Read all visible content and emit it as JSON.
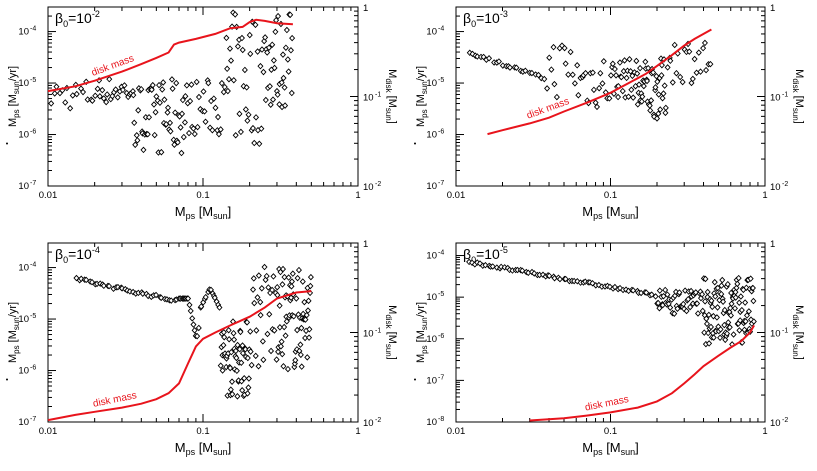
{
  "chart_data": [
    {
      "type": "scatter",
      "title_base": "β",
      "title_sub": "0",
      "title_mid": "=10",
      "title_exp": "-2",
      "xlabel": {
        "base": "M",
        "sub": "ps",
        "rest": " [M",
        "sub2": "sun",
        "end": "]"
      },
      "ylabel_left": {
        "base": "M",
        "sub": "ps",
        "rest": " [M",
        "sub2": "sun",
        "end": "/yr]"
      },
      "ylabel_right": {
        "base": "M",
        "sub": "disk",
        "rest": " [M",
        "sub2": "sun",
        "end": "]"
      },
      "xlim": [
        0.01,
        1
      ],
      "ylim_left": [
        1e-07,
        0.0003
      ],
      "ylim_right": [
        0.01,
        1
      ],
      "x_ticks": [
        {
          "v": 0.01,
          "label": "0.01"
        },
        {
          "v": 0.1,
          "label": "0.1"
        },
        {
          "v": 1,
          "label": "1"
        }
      ],
      "y_left_ticks": [
        {
          "v": 1e-07,
          "exp": "-7"
        },
        {
          "v": 1e-06,
          "exp": "-6"
        },
        {
          "v": 1e-05,
          "exp": "-5"
        },
        {
          "v": 0.0001,
          "exp": "-4"
        }
      ],
      "y_right_ticks": [
        {
          "v": 0.01,
          "base": "10",
          "exp": "-2"
        },
        {
          "v": 0.1,
          "base": "10",
          "exp": "-1"
        },
        {
          "v": 1,
          "base": "1",
          "exp": ""
        }
      ],
      "line_label": "disk mass",
      "line_color": "#e8141c",
      "disk_mass_line": [
        [
          0.01,
          0.115
        ],
        [
          0.015,
          0.13
        ],
        [
          0.02,
          0.15
        ],
        [
          0.03,
          0.19
        ],
        [
          0.04,
          0.23
        ],
        [
          0.05,
          0.27
        ],
        [
          0.06,
          0.31
        ],
        [
          0.065,
          0.38
        ],
        [
          0.07,
          0.4
        ],
        [
          0.09,
          0.44
        ],
        [
          0.12,
          0.5
        ],
        [
          0.15,
          0.58
        ],
        [
          0.18,
          0.6
        ],
        [
          0.2,
          0.68
        ],
        [
          0.22,
          0.72
        ],
        [
          0.25,
          0.7
        ],
        [
          0.3,
          0.66
        ],
        [
          0.38,
          0.64
        ]
      ],
      "accretion_segments": [
        {
          "x0": 0.01,
          "x1": 0.02,
          "ymin": 3e-06,
          "ymax": 1.2e-05,
          "n": 18
        },
        {
          "x0": 0.02,
          "x1": 0.035,
          "ymin": 4e-06,
          "ymax": 1.3e-05,
          "n": 22
        },
        {
          "x0": 0.035,
          "x1": 0.05,
          "ymin": 5e-07,
          "ymax": 1e-05,
          "n": 26
        },
        {
          "x0": 0.05,
          "x1": 0.08,
          "ymin": 4e-07,
          "ymax": 1.2e-05,
          "n": 36
        },
        {
          "x0": 0.08,
          "x1": 0.14,
          "ymin": 1e-06,
          "ymax": 1.2e-05,
          "n": 28
        },
        {
          "x0": 0.14,
          "x1": 0.25,
          "ymin": 6e-07,
          "ymax": 0.00025,
          "n": 40
        },
        {
          "x0": 0.25,
          "x1": 0.38,
          "ymin": 3e-06,
          "ymax": 0.00025,
          "n": 36
        }
      ]
    },
    {
      "type": "scatter",
      "title_base": "β",
      "title_sub": "0",
      "title_mid": "=10",
      "title_exp": "-3",
      "xlabel": {
        "base": "M",
        "sub": "ps",
        "rest": " [M",
        "sub2": "sun",
        "end": "]"
      },
      "ylabel_left": {
        "base": "M",
        "sub": "ps",
        "rest": " [M",
        "sub2": "sun",
        "end": "/yr]"
      },
      "ylabel_right": {
        "base": "M",
        "sub": "disk",
        "rest": " [M",
        "sub2": "sun",
        "end": "]"
      },
      "xlim": [
        0.01,
        1
      ],
      "ylim_left": [
        1e-07,
        0.0003
      ],
      "ylim_right": [
        0.01,
        1
      ],
      "x_ticks": [
        {
          "v": 0.01,
          "label": "0.01"
        },
        {
          "v": 0.1,
          "label": "0.1"
        },
        {
          "v": 1,
          "label": "1"
        }
      ],
      "y_left_ticks": [
        {
          "v": 1e-07,
          "exp": "-7"
        },
        {
          "v": 1e-06,
          "exp": "-6"
        },
        {
          "v": 1e-05,
          "exp": "-5"
        },
        {
          "v": 0.0001,
          "exp": "-4"
        }
      ],
      "y_right_ticks": [
        {
          "v": 0.01,
          "base": "10",
          "exp": "-2"
        },
        {
          "v": 0.1,
          "base": "10",
          "exp": "-1"
        },
        {
          "v": 1,
          "base": "1",
          "exp": ""
        }
      ],
      "line_label": "disk mass",
      "line_color": "#e8141c",
      "disk_mass_line": [
        [
          0.016,
          0.038
        ],
        [
          0.02,
          0.042
        ],
        [
          0.03,
          0.05
        ],
        [
          0.04,
          0.058
        ],
        [
          0.05,
          0.068
        ],
        [
          0.07,
          0.085
        ],
        [
          0.1,
          0.11
        ],
        [
          0.13,
          0.14
        ],
        [
          0.17,
          0.18
        ],
        [
          0.2,
          0.22
        ],
        [
          0.25,
          0.29
        ],
        [
          0.3,
          0.37
        ],
        [
          0.35,
          0.44
        ],
        [
          0.45,
          0.56
        ]
      ],
      "accretion_segments": [
        {
          "x0": 0.012,
          "x1": 0.038,
          "ymin": 1.2e-05,
          "ymax": 4e-05,
          "n": 26,
          "trend": "down"
        },
        {
          "x0": 0.038,
          "x1": 0.06,
          "ymin": 5e-06,
          "ymax": 8e-05,
          "n": 14
        },
        {
          "x0": 0.06,
          "x1": 0.1,
          "ymin": 3e-06,
          "ymax": 4e-05,
          "n": 20
        },
        {
          "x0": 0.1,
          "x1": 0.15,
          "ymin": 5e-06,
          "ymax": 3e-05,
          "n": 28
        },
        {
          "x0": 0.15,
          "x1": 0.23,
          "ymin": 2e-06,
          "ymax": 3e-05,
          "n": 44
        },
        {
          "x0": 0.23,
          "x1": 0.45,
          "ymin": 1e-05,
          "ymax": 8e-05,
          "n": 24
        }
      ]
    },
    {
      "type": "scatter",
      "title_base": "β",
      "title_sub": "0",
      "title_mid": "=10",
      "title_exp": "-4",
      "xlabel": {
        "base": "M",
        "sub": "ps",
        "rest": " [M",
        "sub2": "sun",
        "end": "]"
      },
      "ylabel_left": {
        "base": "M",
        "sub": "ps",
        "rest": " [M",
        "sub2": "sun",
        "end": "/yr]"
      },
      "ylabel_right": {
        "base": "M",
        "sub": "disk",
        "rest": " [M",
        "sub2": "sun",
        "end": "]"
      },
      "xlim": [
        0.01,
        1
      ],
      "ylim_left": [
        1e-07,
        0.0003
      ],
      "ylim_right": [
        0.01,
        1
      ],
      "x_ticks": [
        {
          "v": 0.01,
          "label": "0.01"
        },
        {
          "v": 0.1,
          "label": "0.1"
        },
        {
          "v": 1,
          "label": "1"
        }
      ],
      "y_left_ticks": [
        {
          "v": 1e-07,
          "exp": "-7"
        },
        {
          "v": 1e-06,
          "exp": "-6"
        },
        {
          "v": 1e-05,
          "exp": "-5"
        },
        {
          "v": 0.0001,
          "exp": "-4"
        }
      ],
      "y_right_ticks": [
        {
          "v": 0.01,
          "base": "10",
          "exp": "-2"
        },
        {
          "v": 0.1,
          "base": "10",
          "exp": "-1"
        },
        {
          "v": 1,
          "base": "1",
          "exp": ""
        }
      ],
      "line_label": "disk mass",
      "line_color": "#e8141c",
      "disk_mass_line": [
        [
          0.01,
          0.0105
        ],
        [
          0.015,
          0.012
        ],
        [
          0.02,
          0.013
        ],
        [
          0.03,
          0.0145
        ],
        [
          0.04,
          0.016
        ],
        [
          0.05,
          0.018
        ],
        [
          0.06,
          0.021
        ],
        [
          0.07,
          0.027
        ],
        [
          0.08,
          0.045
        ],
        [
          0.09,
          0.07
        ],
        [
          0.1,
          0.085
        ],
        [
          0.12,
          0.1
        ],
        [
          0.15,
          0.12
        ],
        [
          0.2,
          0.15
        ],
        [
          0.25,
          0.19
        ],
        [
          0.3,
          0.24
        ],
        [
          0.4,
          0.28
        ],
        [
          0.5,
          0.29
        ]
      ],
      "accretion_segments": [
        {
          "x0": 0.015,
          "x1": 0.07,
          "ymin": 2.2e-05,
          "ymax": 6e-05,
          "n": 40,
          "trend": "down"
        },
        {
          "x0": 0.07,
          "x1": 0.095,
          "ymin": 4e-06,
          "ymax": 2.5e-05,
          "n": 16,
          "trend": "dip"
        },
        {
          "x0": 0.095,
          "x1": 0.13,
          "ymin": 1.5e-05,
          "ymax": 4e-05,
          "n": 14,
          "trend": "bump"
        },
        {
          "x0": 0.13,
          "x1": 0.2,
          "ymin": 3e-07,
          "ymax": 1e-05,
          "n": 60
        },
        {
          "x0": 0.2,
          "x1": 0.3,
          "ymin": 1e-06,
          "ymax": 0.00014,
          "n": 30
        },
        {
          "x0": 0.3,
          "x1": 0.5,
          "ymin": 1e-06,
          "ymax": 0.0001,
          "n": 70
        }
      ]
    },
    {
      "type": "scatter",
      "title_base": "β",
      "title_sub": "0",
      "title_mid": "=10",
      "title_exp": "-5",
      "xlabel": {
        "base": "M",
        "sub": "ps",
        "rest": " [M",
        "sub2": "sun",
        "end": "]"
      },
      "ylabel_left": {
        "base": "M",
        "sub": "ps",
        "rest": " [M",
        "sub2": "sun",
        "end": "/yr]"
      },
      "ylabel_right": {
        "base": "M",
        "sub": "disk",
        "rest": " [M",
        "sub2": "sun",
        "end": "]"
      },
      "xlim": [
        0.01,
        1
      ],
      "ylim_left": [
        1e-08,
        0.0002
      ],
      "ylim_right": [
        0.01,
        1
      ],
      "x_ticks": [
        {
          "v": 0.01,
          "label": "0.01"
        },
        {
          "v": 0.1,
          "label": "0.1"
        },
        {
          "v": 1,
          "label": "1"
        }
      ],
      "y_left_ticks": [
        {
          "v": 1e-08,
          "exp": "-8"
        },
        {
          "v": 1e-07,
          "exp": "-7"
        },
        {
          "v": 1e-06,
          "exp": "-6"
        },
        {
          "v": 1e-05,
          "exp": "-5"
        },
        {
          "v": 0.0001,
          "exp": "-4"
        }
      ],
      "y_right_ticks": [
        {
          "v": 0.01,
          "base": "10",
          "exp": "-2"
        },
        {
          "v": 0.1,
          "base": "10",
          "exp": "-1"
        },
        {
          "v": 1,
          "base": "1",
          "exp": ""
        }
      ],
      "line_label": "disk mass",
      "line_color": "#e8141c",
      "disk_mass_line": [
        [
          0.03,
          0.0104
        ],
        [
          0.05,
          0.011
        ],
        [
          0.07,
          0.0118
        ],
        [
          0.1,
          0.0128
        ],
        [
          0.15,
          0.0145
        ],
        [
          0.2,
          0.017
        ],
        [
          0.25,
          0.021
        ],
        [
          0.3,
          0.027
        ],
        [
          0.35,
          0.034
        ],
        [
          0.4,
          0.042
        ],
        [
          0.5,
          0.055
        ],
        [
          0.6,
          0.068
        ],
        [
          0.7,
          0.08
        ],
        [
          0.8,
          0.1
        ],
        [
          0.85,
          0.12
        ]
      ],
      "accretion_segments": [
        {
          "x0": 0.012,
          "x1": 0.2,
          "ymin": 1.1e-05,
          "ymax": 7e-05,
          "n": 70,
          "trend": "down"
        },
        {
          "x0": 0.2,
          "x1": 0.4,
          "ymin": 4e-06,
          "ymax": 1.5e-05,
          "n": 50
        },
        {
          "x0": 0.4,
          "x1": 0.85,
          "ymin": 7e-07,
          "ymax": 3e-05,
          "n": 110
        }
      ]
    }
  ]
}
